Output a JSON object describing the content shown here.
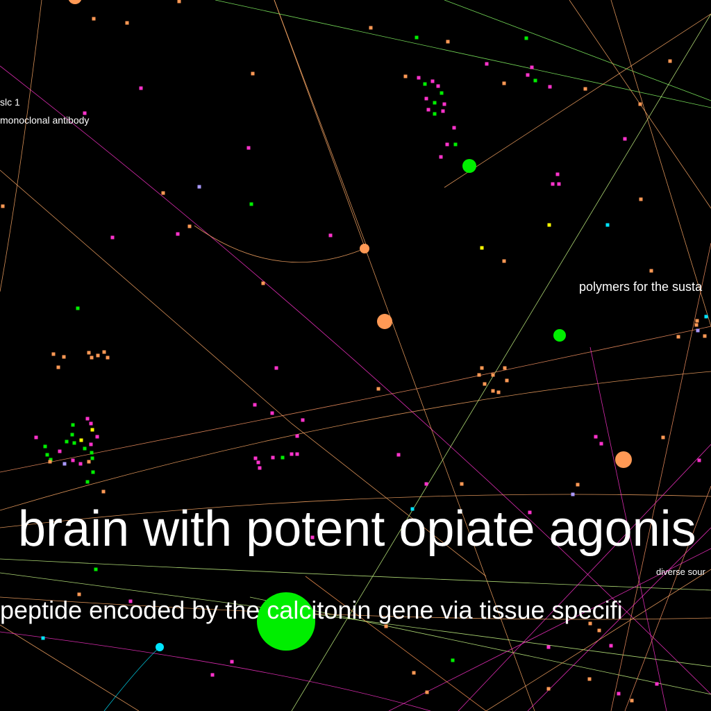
{
  "graph": {
    "background": "#000000",
    "palette": {
      "orange": "#ff9955",
      "green": "#00ee00",
      "pink": "#ff33cc",
      "lavender": "#aa99ff",
      "cyan": "#00e5ff",
      "yellow": "#ffff00"
    },
    "labels": [
      {
        "id": "label-slc1",
        "text": "slc 1"
      },
      {
        "id": "label-monoclonal-antibody",
        "text": "monoclonal antibody"
      },
      {
        "id": "label-polymers",
        "text": "polymers for the susta"
      },
      {
        "id": "label-brain-opiate",
        "text": " brain with potent opiate agonis"
      },
      {
        "id": "label-diverse-sources",
        "text": "diverse sour"
      },
      {
        "id": "label-calcitonin-peptide",
        "text": "peptide encoded by the calcitonin gene via tissue specifi"
      }
    ],
    "highlighted_nodes": [
      {
        "id": "node-green-large",
        "color": "green"
      },
      {
        "id": "node-orange-mid-1",
        "color": "orange"
      },
      {
        "id": "node-orange-mid-2",
        "color": "orange"
      },
      {
        "id": "node-orange-right",
        "color": "orange"
      },
      {
        "id": "node-green-upper",
        "color": "green"
      },
      {
        "id": "node-green-right",
        "color": "green"
      },
      {
        "id": "node-cyan-lower",
        "color": "cyan"
      }
    ]
  }
}
